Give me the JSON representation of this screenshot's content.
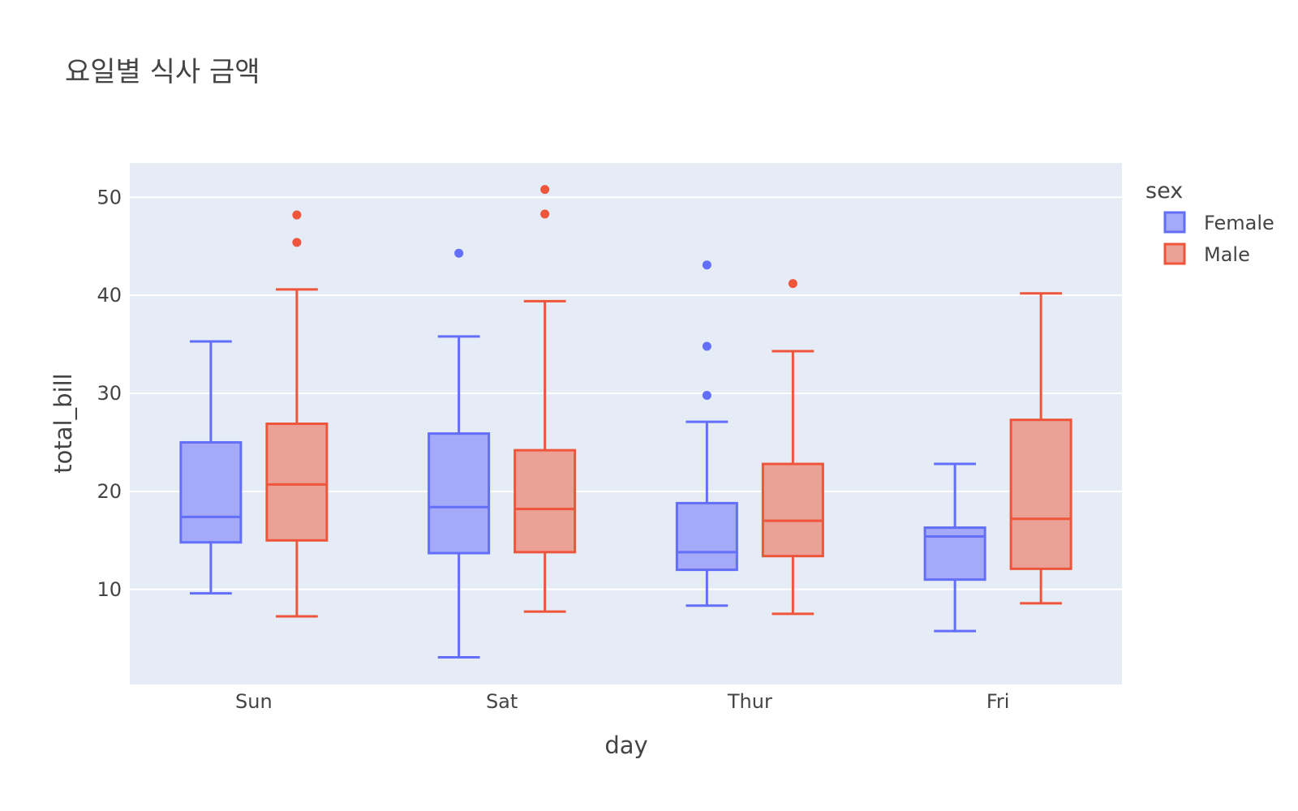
{
  "chart_data": {
    "type": "box",
    "title": "요일별 식사 금액",
    "xlabel": "day",
    "ylabel": "total_bill",
    "categories": [
      "Sun",
      "Sat",
      "Thur",
      "Fri"
    ],
    "ylim": [
      0.3,
      53.5
    ],
    "yticks": [
      10,
      20,
      30,
      40,
      50
    ],
    "grid": true,
    "legend": {
      "title": "sex",
      "placement": "right-top"
    },
    "series": [
      {
        "name": "Female",
        "color": "#636efa",
        "fill": "#a4aaf8",
        "boxes": [
          {
            "category": "Sun",
            "lowerfence": 9.6,
            "q1": 14.8,
            "median": 17.4,
            "q3": 25.0,
            "upperfence": 35.3,
            "outliers": []
          },
          {
            "category": "Sat",
            "lowerfence": 3.07,
            "q1": 13.7,
            "median": 18.4,
            "q3": 25.9,
            "upperfence": 35.8,
            "outliers": [
              44.3
            ]
          },
          {
            "category": "Thur",
            "lowerfence": 8.35,
            "q1": 12.0,
            "median": 13.8,
            "q3": 18.8,
            "upperfence": 27.1,
            "outliers": [
              29.8,
              34.8,
              43.1
            ]
          },
          {
            "category": "Fri",
            "lowerfence": 5.75,
            "q1": 11.0,
            "median": 15.4,
            "q3": 16.3,
            "upperfence": 22.8,
            "outliers": []
          }
        ]
      },
      {
        "name": "Male",
        "color": "#ef553b",
        "fill": "#eca196",
        "boxes": [
          {
            "category": "Sun",
            "lowerfence": 7.25,
            "q1": 15.0,
            "median": 20.7,
            "q3": 26.9,
            "upperfence": 40.6,
            "outliers": [
              45.4,
              48.2
            ]
          },
          {
            "category": "Sat",
            "lowerfence": 7.74,
            "q1": 13.8,
            "median": 18.2,
            "q3": 24.2,
            "upperfence": 39.4,
            "outliers": [
              48.3,
              50.8
            ]
          },
          {
            "category": "Thur",
            "lowerfence": 7.51,
            "q1": 13.4,
            "median": 17.0,
            "q3": 22.8,
            "upperfence": 34.3,
            "outliers": [
              41.2
            ]
          },
          {
            "category": "Fri",
            "lowerfence": 8.58,
            "q1": 12.1,
            "median": 17.2,
            "q3": 27.3,
            "upperfence": 40.2,
            "outliers": []
          }
        ]
      }
    ]
  }
}
